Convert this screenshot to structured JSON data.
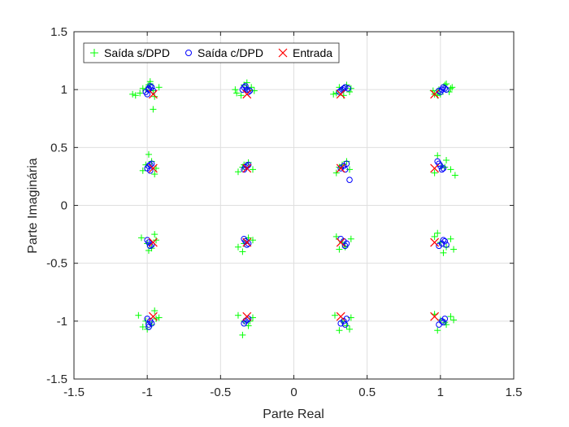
{
  "chart_data": {
    "type": "scatter",
    "xlabel": "Parte Real",
    "ylabel": "Parte Imaginária",
    "xlim": [
      -1.5,
      1.5
    ],
    "ylim": [
      -1.5,
      1.5
    ],
    "xticks": [
      -1.5,
      -1,
      -0.5,
      0,
      0.5,
      1,
      1.5
    ],
    "yticks": [
      -1.5,
      -1,
      -0.5,
      0,
      0.5,
      1,
      1.5
    ],
    "xtick_labels": [
      "-1.5",
      "-1",
      "-0.5",
      "0",
      "0.5",
      "1",
      "1.5"
    ],
    "ytick_labels": [
      "-1.5",
      "-1",
      "-0.5",
      "0",
      "0.5",
      "1",
      "1.5"
    ],
    "grid": true,
    "legend_position": "top-left",
    "legend_orientation": "horizontal",
    "series": [
      {
        "name": "Saída s/DPD",
        "marker": "plus",
        "color": "#00ff00",
        "x": [
          -1.03,
          -0.96,
          -1.08,
          -0.99,
          -0.92,
          -0.98,
          -1.05,
          -0.95,
          -1.01,
          -0.96,
          -1.1,
          -0.98,
          -0.32,
          -0.27,
          -0.39,
          -0.34,
          -0.29,
          -0.36,
          -0.32,
          -0.4,
          0.33,
          0.38,
          0.27,
          0.36,
          0.31,
          0.39,
          0.29,
          0.34,
          0.99,
          1.06,
          0.96,
          1.03,
          1.08,
          0.98,
          1.04,
          0.95,
          1.0,
          1.07,
          -1.01,
          -0.94,
          -1.03,
          -0.97,
          -0.99,
          -0.95,
          -0.34,
          -0.28,
          -0.38,
          -0.31,
          -0.35,
          0.33,
          0.38,
          0.29,
          0.36,
          0.31,
          1.01,
          1.07,
          0.96,
          1.04,
          1.1,
          0.98,
          1.03,
          -1.0,
          -0.94,
          -1.04,
          -0.97,
          -0.99,
          -0.95,
          -0.34,
          -0.28,
          -0.38,
          -0.31,
          -0.35,
          0.33,
          0.39,
          0.29,
          0.35,
          0.31,
          1.0,
          1.07,
          0.96,
          1.04,
          1.09,
          0.98,
          1.02,
          -1.01,
          -0.94,
          -1.06,
          -0.97,
          -0.92,
          -1.0,
          -1.03,
          -0.95,
          -0.34,
          -0.28,
          -0.38,
          -0.31,
          -0.35,
          -0.3,
          0.33,
          0.39,
          0.28,
          0.36,
          0.31,
          0.38,
          1.0,
          1.07,
          0.96,
          1.04,
          1.09,
          0.98,
          1.03
        ],
        "y": [
          1.01,
          0.99,
          0.95,
          1.04,
          1.02,
          1.07,
          0.97,
          0.94,
          1.0,
          0.83,
          0.96,
          1.05,
          1.01,
          0.99,
          0.97,
          1.04,
          1.02,
          0.95,
          1.06,
          1.0,
          1.0,
          0.98,
          0.96,
          1.04,
          1.02,
          1.01,
          0.97,
          0.95,
          1.0,
          0.98,
          0.96,
          1.04,
          1.02,
          0.95,
          1.05,
          0.99,
          0.96,
          1.01,
          0.35,
          0.32,
          0.3,
          0.38,
          0.44,
          0.27,
          0.35,
          0.31,
          0.29,
          0.37,
          0.33,
          0.35,
          0.31,
          0.28,
          0.38,
          0.33,
          0.34,
          0.31,
          0.28,
          0.39,
          0.26,
          0.43,
          0.33,
          -0.33,
          -0.3,
          -0.28,
          -0.37,
          -0.39,
          -0.25,
          -0.33,
          -0.3,
          -0.36,
          -0.28,
          -0.4,
          -0.32,
          -0.29,
          -0.27,
          -0.36,
          -0.38,
          -0.32,
          -0.29,
          -0.27,
          -0.36,
          -0.38,
          -0.24,
          -0.41,
          -1.0,
          -0.98,
          -0.95,
          -1.03,
          -0.97,
          -1.07,
          -1.05,
          -0.91,
          -1.0,
          -0.97,
          -0.95,
          -1.04,
          -1.12,
          -1.0,
          -1.0,
          -0.97,
          -0.95,
          -1.04,
          -1.08,
          -1.07,
          -0.99,
          -0.96,
          -0.94,
          -1.03,
          -0.99,
          -1.08,
          -1.01
        ]
      },
      {
        "name": "Saída c/DPD",
        "marker": "circle",
        "color": "#0000ff",
        "x": [
          -0.99,
          -0.97,
          -1.01,
          -0.98,
          -1.0,
          -0.96,
          -0.99,
          -0.32,
          -0.34,
          -0.3,
          -0.33,
          -0.31,
          -0.35,
          0.33,
          0.35,
          0.31,
          0.34,
          0.37,
          0.32,
          1.01,
          1.03,
          0.99,
          1.02,
          1.04,
          1.0,
          -0.99,
          -0.97,
          -1.0,
          -0.98,
          -0.98,
          -0.33,
          -0.31,
          -0.34,
          -0.32,
          0.34,
          0.36,
          0.32,
          0.35,
          0.38,
          1.0,
          1.02,
          0.99,
          1.01,
          0.98,
          -0.99,
          -0.97,
          -1.0,
          -0.98,
          -0.33,
          -0.31,
          -0.34,
          -0.32,
          0.34,
          0.36,
          0.32,
          0.35,
          1.01,
          1.03,
          0.99,
          1.02,
          1.04,
          -0.98,
          -1.0,
          -0.97,
          -0.99,
          -0.99,
          -0.33,
          -0.31,
          -0.34,
          -0.32,
          0.34,
          0.36,
          0.32,
          0.35,
          1.01,
          1.03,
          0.99,
          1.02
        ],
        "y": [
          1.0,
          1.02,
          0.98,
          1.03,
          0.96,
          0.99,
          1.01,
          1.0,
          1.02,
          0.99,
          1.03,
          0.98,
          1.0,
          1.0,
          1.02,
          0.98,
          1.01,
          1.01,
          0.99,
          1.0,
          1.01,
          0.99,
          1.02,
          1.0,
          0.98,
          0.34,
          0.36,
          0.32,
          0.35,
          0.3,
          0.33,
          0.35,
          0.31,
          0.34,
          0.34,
          0.36,
          0.32,
          0.31,
          0.22,
          0.34,
          0.32,
          0.36,
          0.31,
          0.38,
          -0.32,
          -0.34,
          -0.3,
          -0.35,
          -0.31,
          -0.33,
          -0.29,
          -0.34,
          -0.31,
          -0.33,
          -0.29,
          -0.35,
          -0.33,
          -0.31,
          -0.35,
          -0.3,
          -0.34,
          -1.0,
          -0.98,
          -1.02,
          -1.03,
          -1.05,
          -1.0,
          -0.98,
          -1.02,
          -0.99,
          -1.0,
          -0.98,
          -1.02,
          -1.03,
          -1.0,
          -0.98,
          -1.03,
          -1.01
        ]
      },
      {
        "name": "Entrada",
        "marker": "x",
        "color": "#ff0000",
        "x": [
          -0.96,
          -0.32,
          0.32,
          0.96,
          -0.96,
          -0.32,
          0.32,
          0.96,
          -0.96,
          -0.32,
          0.32,
          0.96,
          -0.96,
          -0.32,
          0.32,
          0.96
        ],
        "y": [
          0.96,
          0.96,
          0.96,
          0.96,
          0.32,
          0.32,
          0.32,
          0.32,
          -0.32,
          -0.32,
          -0.32,
          -0.32,
          -0.96,
          -0.96,
          -0.96,
          -0.96
        ]
      }
    ]
  }
}
